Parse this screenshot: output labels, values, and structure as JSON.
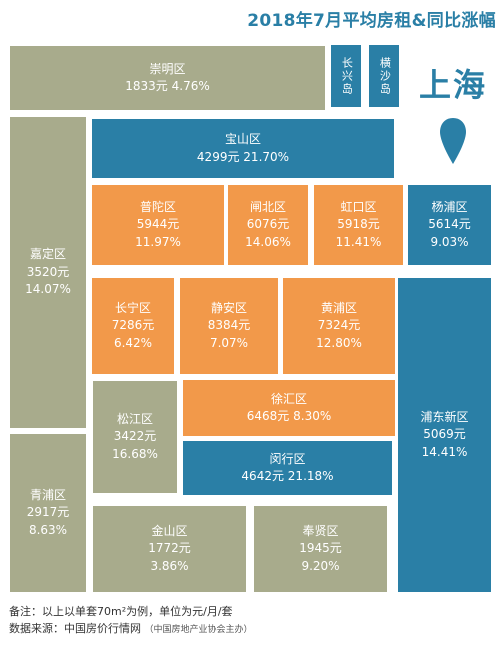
{
  "title": "2018年7月平均房租&同比涨幅",
  "city": "上海",
  "districts": {
    "chongming": {
      "name": "崇明区",
      "rent": "1833元",
      "yoy": "4.76%"
    },
    "changxing": {
      "name": "长兴岛"
    },
    "hengsha": {
      "name": "横沙岛"
    },
    "baoshan": {
      "name": "宝山区",
      "rent": "4299元",
      "yoy": "21.70%"
    },
    "jiading": {
      "name": "嘉定区",
      "rent": "3520元",
      "yoy": "14.07%"
    },
    "putuo": {
      "name": "普陀区",
      "rent": "5944元",
      "yoy": "11.97%"
    },
    "zhabei": {
      "name": "闸北区",
      "rent": "6076元",
      "yoy": "14.06%"
    },
    "hongkou": {
      "name": "虹口区",
      "rent": "5918元",
      "yoy": "11.41%"
    },
    "yangpu": {
      "name": "杨浦区",
      "rent": "5614元",
      "yoy": "9.03%"
    },
    "changning": {
      "name": "长宁区",
      "rent": "7286元",
      "yoy": "6.42%"
    },
    "jingan": {
      "name": "静安区",
      "rent": "8384元",
      "yoy": "7.07%"
    },
    "huangpu": {
      "name": "黄浦区",
      "rent": "7324元",
      "yoy": "12.80%"
    },
    "pudong": {
      "name": "浦东新区",
      "rent": "5069元",
      "yoy": "14.41%"
    },
    "songjiang": {
      "name": "松江区",
      "rent": "3422元",
      "yoy": "16.68%"
    },
    "xuhui": {
      "name": "徐汇区",
      "rent": "6468元",
      "yoy": "8.30%"
    },
    "minhang": {
      "name": "闵行区",
      "rent": "4642元",
      "yoy": "21.18%"
    },
    "qingpu": {
      "name": "青浦区",
      "rent": "2917元",
      "yoy": "8.63%"
    },
    "jinshan": {
      "name": "金山区",
      "rent": "1772元",
      "yoy": "3.86%"
    },
    "fengxian": {
      "name": "奉贤区",
      "rent": "1945元",
      "yoy": "9.20%"
    }
  },
  "footnote": {
    "note": "备注：以上以单套70m²为例，单位为元/月/套",
    "source": "数据来源：中国房价行情网",
    "source_sub": "（中国房地产业协会主办）"
  },
  "colors": {
    "teal": "#2a7fa6",
    "orange": "#f2994a",
    "gray": "#a8ab8c"
  },
  "icons": {
    "pin": "map-pin-icon"
  }
}
